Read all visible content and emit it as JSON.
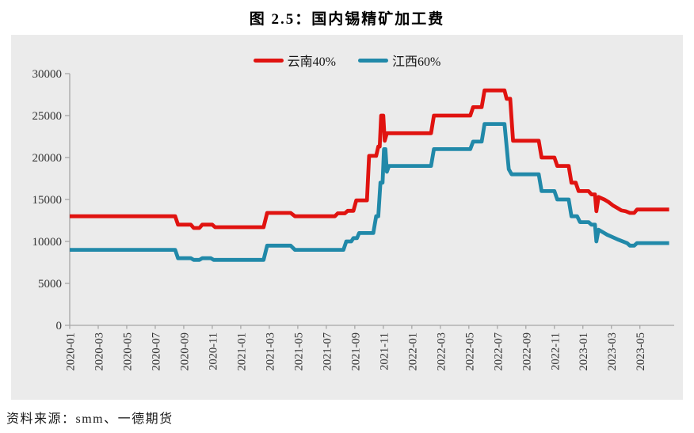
{
  "page": {
    "title": "图 2.5：国内锡精矿加工费",
    "source_note": "资料来源：smm、一德期货"
  },
  "colors": {
    "panel_bg": "#ebebeb",
    "axis": "#a6a6a6",
    "tick_text": "#333333",
    "series_yunnan": "#e01310",
    "series_jiangxi": "#2189a9"
  },
  "legend": {
    "items": [
      {
        "id": "yunnan-40",
        "label": "云南40%",
        "color": "#e01310"
      },
      {
        "id": "jiangxi-60",
        "label": "江西60%",
        "color": "#2189a9"
      }
    ]
  },
  "chart_data": {
    "type": "line",
    "title": "图 2.5：国内锡精矿加工费",
    "xlabel": "",
    "ylabel": "",
    "grid": false,
    "legend_position": "top-center",
    "ylim": [
      0,
      30000
    ],
    "y_ticks": [
      0,
      5000,
      10000,
      15000,
      20000,
      25000,
      30000
    ],
    "xlim": [
      0,
      42.1
    ],
    "x_unit": "months_since_2020-01",
    "x_tick_months": [
      0,
      2,
      4,
      6,
      8,
      10,
      12,
      14,
      16,
      18,
      20,
      22,
      24,
      26,
      28,
      30,
      32,
      34,
      36,
      38,
      40
    ],
    "x_tick_labels": [
      "2020-01",
      "2020-03",
      "2020-05",
      "2020-07",
      "2020-09",
      "2020-11",
      "2021-01",
      "2021-03",
      "2021-05",
      "2021-07",
      "2021-09",
      "2021-11",
      "2022-01",
      "2022-03",
      "2022-05",
      "2022-07",
      "2022-09",
      "2022-11",
      "2023-01",
      "2023-03",
      "2023-05"
    ],
    "series": [
      {
        "id": "yunnan-40",
        "name": "云南40%",
        "color": "#e01310",
        "points": [
          [
            0,
            13000
          ],
          [
            7.4,
            13000
          ],
          [
            7.6,
            12000
          ],
          [
            8.5,
            12000
          ],
          [
            8.7,
            11600
          ],
          [
            9.1,
            11600
          ],
          [
            9.3,
            12000
          ],
          [
            10.0,
            12000
          ],
          [
            10.2,
            11700
          ],
          [
            13.6,
            11700
          ],
          [
            13.85,
            13400
          ],
          [
            15.5,
            13400
          ],
          [
            15.8,
            13000
          ],
          [
            18.6,
            13000
          ],
          [
            18.8,
            13350
          ],
          [
            19.3,
            13350
          ],
          [
            19.5,
            13650
          ],
          [
            19.9,
            13650
          ],
          [
            20.1,
            14900
          ],
          [
            20.85,
            14900
          ],
          [
            21.0,
            20200
          ],
          [
            21.5,
            20200
          ],
          [
            21.65,
            21300
          ],
          [
            21.75,
            21300
          ],
          [
            21.85,
            25000
          ],
          [
            22.0,
            25000
          ],
          [
            22.1,
            22000
          ],
          [
            22.25,
            22900
          ],
          [
            25.35,
            22900
          ],
          [
            25.55,
            25000
          ],
          [
            28.1,
            25000
          ],
          [
            28.3,
            26000
          ],
          [
            28.9,
            26000
          ],
          [
            29.1,
            28000
          ],
          [
            30.5,
            28000
          ],
          [
            30.65,
            27000
          ],
          [
            30.9,
            27000
          ],
          [
            31.1,
            22000
          ],
          [
            32.9,
            22000
          ],
          [
            33.1,
            20000
          ],
          [
            34.0,
            20000
          ],
          [
            34.2,
            19000
          ],
          [
            35.0,
            19000
          ],
          [
            35.2,
            17000
          ],
          [
            35.5,
            17000
          ],
          [
            35.7,
            16000
          ],
          [
            36.4,
            16000
          ],
          [
            36.6,
            15600
          ],
          [
            36.85,
            15600
          ],
          [
            36.95,
            13600
          ],
          [
            37.1,
            15300
          ],
          [
            37.5,
            15000
          ],
          [
            37.8,
            14700
          ],
          [
            38.1,
            14300
          ],
          [
            38.4,
            14000
          ],
          [
            38.7,
            13700
          ],
          [
            39.0,
            13600
          ],
          [
            39.3,
            13400
          ],
          [
            39.6,
            13400
          ],
          [
            39.8,
            13800
          ],
          [
            42.05,
            13800
          ]
        ]
      },
      {
        "id": "jiangxi-60",
        "name": "江西60%",
        "color": "#2189a9",
        "points": [
          [
            0,
            9000
          ],
          [
            7.4,
            9000
          ],
          [
            7.6,
            8000
          ],
          [
            8.5,
            8000
          ],
          [
            8.7,
            7800
          ],
          [
            9.1,
            7800
          ],
          [
            9.3,
            8000
          ],
          [
            9.9,
            8000
          ],
          [
            10.1,
            7800
          ],
          [
            13.6,
            7800
          ],
          [
            13.85,
            9500
          ],
          [
            15.5,
            9500
          ],
          [
            15.8,
            9000
          ],
          [
            19.2,
            9000
          ],
          [
            19.4,
            10000
          ],
          [
            19.75,
            10000
          ],
          [
            19.9,
            10400
          ],
          [
            20.15,
            10400
          ],
          [
            20.3,
            11000
          ],
          [
            21.3,
            11000
          ],
          [
            21.5,
            13000
          ],
          [
            21.65,
            13000
          ],
          [
            21.8,
            17000
          ],
          [
            21.95,
            17000
          ],
          [
            22.05,
            21000
          ],
          [
            22.15,
            21000
          ],
          [
            22.25,
            18300
          ],
          [
            22.4,
            19000
          ],
          [
            25.35,
            19000
          ],
          [
            25.55,
            21000
          ],
          [
            28.1,
            21000
          ],
          [
            28.3,
            21900
          ],
          [
            28.9,
            21900
          ],
          [
            29.1,
            24000
          ],
          [
            30.5,
            24000
          ],
          [
            30.8,
            18600
          ],
          [
            31.0,
            18000
          ],
          [
            32.9,
            18000
          ],
          [
            33.1,
            16000
          ],
          [
            34.0,
            16000
          ],
          [
            34.2,
            15000
          ],
          [
            35.0,
            15000
          ],
          [
            35.2,
            13000
          ],
          [
            35.6,
            13000
          ],
          [
            35.8,
            12300
          ],
          [
            36.4,
            12300
          ],
          [
            36.6,
            12000
          ],
          [
            36.85,
            12000
          ],
          [
            36.95,
            10000
          ],
          [
            37.1,
            11400
          ],
          [
            37.4,
            11100
          ],
          [
            37.7,
            10800
          ],
          [
            38.1,
            10500
          ],
          [
            38.5,
            10200
          ],
          [
            38.8,
            10000
          ],
          [
            39.1,
            9800
          ],
          [
            39.3,
            9500
          ],
          [
            39.6,
            9500
          ],
          [
            39.8,
            9800
          ],
          [
            42.05,
            9800
          ]
        ]
      }
    ]
  }
}
